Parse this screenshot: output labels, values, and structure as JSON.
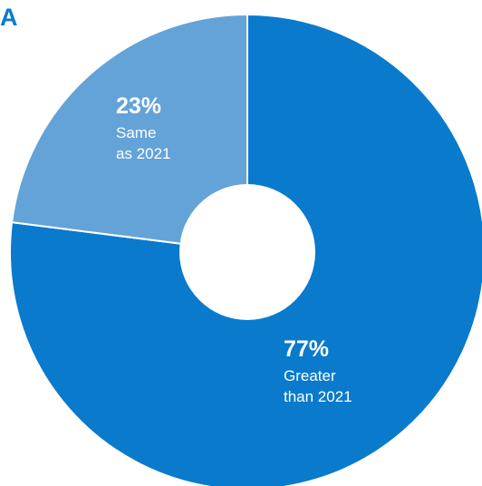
{
  "panel_label": "A",
  "colors": {
    "panel_label": "#0a7acc",
    "slice_primary": "#0a7acc",
    "slice_secondary": "#63a3d8",
    "separator": "#ffffff",
    "hole": "#ffffff"
  },
  "chart_data": {
    "type": "pie",
    "variant": "donut",
    "start_angle_deg": 0,
    "direction": "clockwise",
    "slices": [
      {
        "key": "greater",
        "value": 77,
        "value_label": "77%",
        "label_lines": [
          "Greater",
          "than 2021"
        ]
      },
      {
        "key": "same",
        "value": 23,
        "value_label": "23%",
        "label_lines": [
          "Same",
          "as 2021"
        ]
      }
    ]
  }
}
